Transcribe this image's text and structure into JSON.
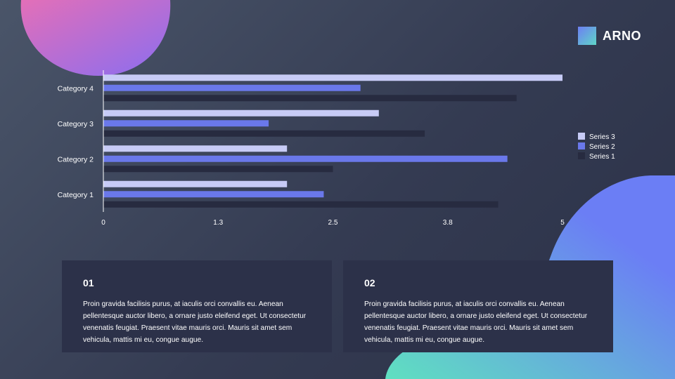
{
  "brand": {
    "name": "ARNO"
  },
  "colors": {
    "series_3": "#c7cbf6",
    "series_2": "#6a78ea",
    "series_1": "#272b40",
    "blob_top": [
      "#e36fb8",
      "#8a6df0"
    ],
    "blob_bottom": [
      "#5fe0c0",
      "#6b7ef5"
    ],
    "card": "#2c3149"
  },
  "chart_data": {
    "type": "bar",
    "orientation": "horizontal",
    "categories": [
      "Category 1",
      "Category 2",
      "Category 3",
      "Category 4"
    ],
    "series": [
      {
        "name": "Series 1",
        "values": [
          4.3,
          2.5,
          3.5,
          4.5
        ]
      },
      {
        "name": "Series 2",
        "values": [
          2.4,
          4.4,
          1.8,
          2.8
        ]
      },
      {
        "name": "Series 3",
        "values": [
          2.0,
          2.0,
          3.0,
          5.0
        ]
      }
    ],
    "xlim": [
      0,
      5
    ],
    "x_ticks": [
      "0",
      "1.3",
      "2.5",
      "3.8",
      "5"
    ],
    "x_tick_values": [
      0,
      1.25,
      2.5,
      3.75,
      5
    ],
    "legend": [
      "Series 3",
      "Series 2",
      "Series 1"
    ],
    "legend_position": "right",
    "grid": false
  },
  "cards": [
    {
      "number": "01",
      "text": "Proin gravida facilisis purus, at iaculis orci convallis eu. Aenean pellentesque auctor libero, a ornare justo eleifend eget. Ut consectetur venenatis feugiat. Praesent vitae mauris orci. Mauris sit amet sem vehicula, mattis mi eu, congue augue."
    },
    {
      "number": "02",
      "text": "Proin gravida facilisis purus, at iaculis orci convallis eu. Aenean pellentesque auctor libero, a ornare justo eleifend eget. Ut consectetur venenatis feugiat. Praesent vitae mauris orci. Mauris sit amet sem vehicula, mattis mi eu, congue augue."
    }
  ]
}
